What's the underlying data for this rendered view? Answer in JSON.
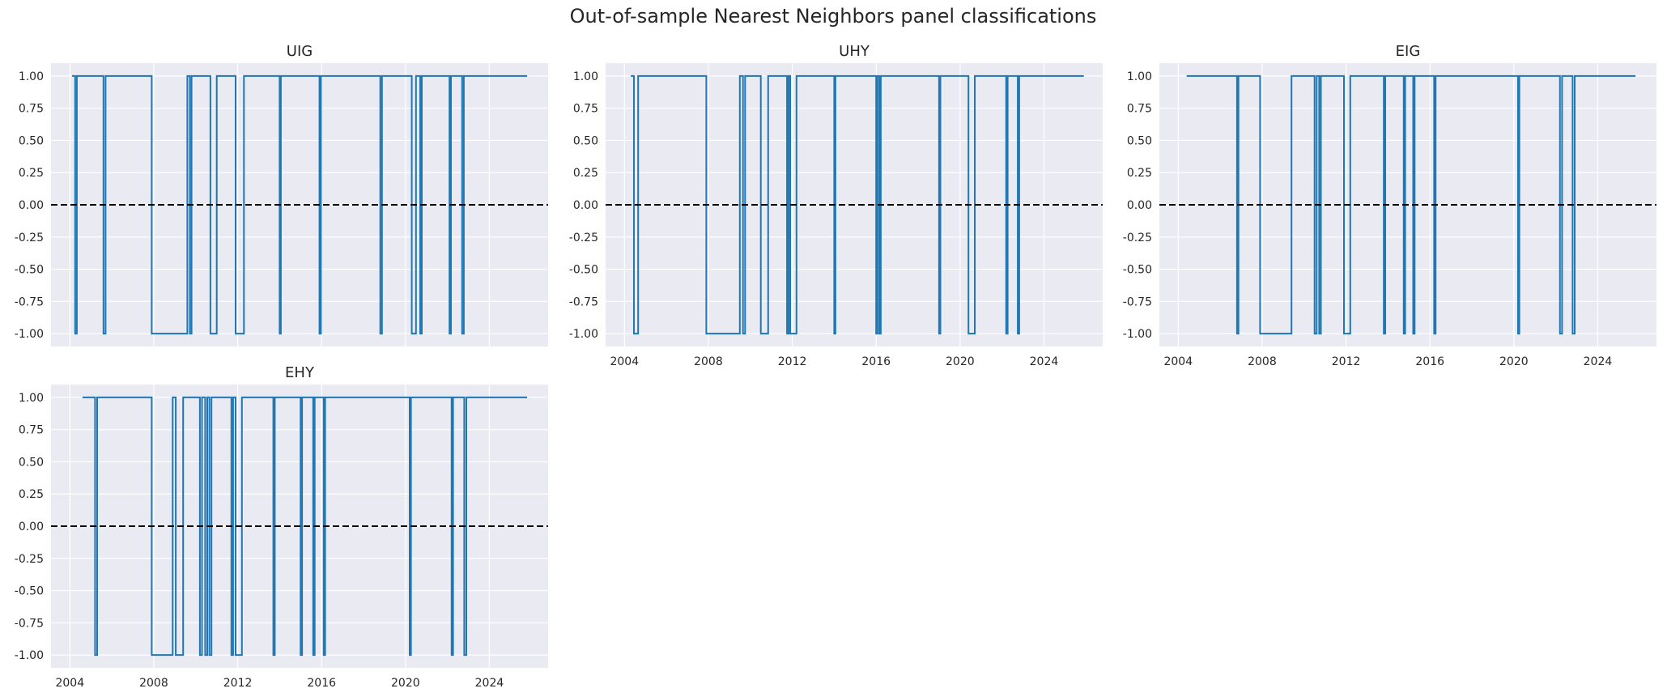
{
  "figure_title": "Out-of-sample Nearest Neighbors panel classifications",
  "colors": {
    "background": "#eaeaf2",
    "grid": "#ffffff",
    "series": "#1f77b4",
    "zero_line": "#000000"
  },
  "chart_data": [
    {
      "type": "line",
      "title": "UIG",
      "xlabel": "",
      "ylabel": "",
      "x_ticks": [
        "2004",
        "2008",
        "2012",
        "2016",
        "2020",
        "2024"
      ],
      "y_ticks": [
        "1.00",
        "0.75",
        "0.50",
        "0.25",
        "0.00",
        "-0.25",
        "-0.50",
        "-0.75",
        "-1.00"
      ],
      "ylim": [
        -1.1,
        1.1
      ],
      "xlim": [
        2003.1,
        2026.8
      ],
      "grid": true,
      "reference_line": {
        "y": 0,
        "style": "dashed"
      },
      "series": [
        {
          "step": true,
          "points": [
            [
              2004.1,
              1
            ],
            [
              2004.25,
              -1
            ],
            [
              2004.33,
              1
            ],
            [
              2005.6,
              -1
            ],
            [
              2005.7,
              1
            ],
            [
              2007.9,
              -1
            ],
            [
              2009.6,
              1
            ],
            [
              2009.72,
              -1
            ],
            [
              2009.8,
              1
            ],
            [
              2010.7,
              -1
            ],
            [
              2011.0,
              1
            ],
            [
              2011.9,
              -1
            ],
            [
              2012.3,
              1
            ],
            [
              2014.0,
              -1
            ],
            [
              2014.06,
              1
            ],
            [
              2015.9,
              -1
            ],
            [
              2015.97,
              1
            ],
            [
              2018.8,
              -1
            ],
            [
              2018.88,
              1
            ],
            [
              2020.3,
              -1
            ],
            [
              2020.5,
              1
            ],
            [
              2020.7,
              -1
            ],
            [
              2020.78,
              1
            ],
            [
              2022.1,
              -1
            ],
            [
              2022.17,
              1
            ],
            [
              2022.7,
              -1
            ],
            [
              2022.78,
              1
            ],
            [
              2025.8,
              1
            ]
          ]
        }
      ]
    },
    {
      "type": "line",
      "title": "UHY",
      "xlabel": "",
      "ylabel": "",
      "x_ticks": [
        "2004",
        "2008",
        "2012",
        "2016",
        "2020",
        "2024"
      ],
      "y_ticks": [
        "1.00",
        "0.75",
        "0.50",
        "0.25",
        "0.00",
        "-0.25",
        "-0.50",
        "-0.75",
        "-1.00"
      ],
      "ylim": [
        -1.1,
        1.1
      ],
      "xlim": [
        2003.1,
        2026.8
      ],
      "grid": true,
      "reference_line": {
        "y": 0,
        "style": "dashed"
      },
      "series": [
        {
          "step": true,
          "points": [
            [
              2004.3,
              1
            ],
            [
              2004.45,
              -1
            ],
            [
              2004.65,
              1
            ],
            [
              2007.9,
              -1
            ],
            [
              2009.5,
              1
            ],
            [
              2009.65,
              -1
            ],
            [
              2009.75,
              1
            ],
            [
              2010.5,
              -1
            ],
            [
              2010.85,
              1
            ],
            [
              2011.75,
              -1
            ],
            [
              2011.82,
              1
            ],
            [
              2011.9,
              -1
            ],
            [
              2012.2,
              1
            ],
            [
              2014.0,
              -1
            ],
            [
              2014.06,
              1
            ],
            [
              2016.0,
              -1
            ],
            [
              2016.06,
              1
            ],
            [
              2016.15,
              -1
            ],
            [
              2016.22,
              1
            ],
            [
              2019.0,
              -1
            ],
            [
              2019.06,
              1
            ],
            [
              2020.4,
              -1
            ],
            [
              2020.7,
              1
            ],
            [
              2022.2,
              -1
            ],
            [
              2022.27,
              1
            ],
            [
              2022.75,
              -1
            ],
            [
              2022.82,
              1
            ],
            [
              2025.9,
              1
            ]
          ]
        }
      ]
    },
    {
      "type": "line",
      "title": "EIG",
      "xlabel": "",
      "ylabel": "",
      "x_ticks": [
        "2004",
        "2008",
        "2012",
        "2016",
        "2020",
        "2024"
      ],
      "y_ticks": [
        "1.00",
        "0.75",
        "0.50",
        "0.25",
        "0.00",
        "-0.25",
        "-0.50",
        "-0.75",
        "-1.00"
      ],
      "ylim": [
        -1.1,
        1.1
      ],
      "xlim": [
        2003.1,
        2026.8
      ],
      "grid": true,
      "reference_line": {
        "y": 0,
        "style": "dashed"
      },
      "series": [
        {
          "step": true,
          "points": [
            [
              2004.4,
              1
            ],
            [
              2006.8,
              -1
            ],
            [
              2006.87,
              1
            ],
            [
              2007.9,
              -1
            ],
            [
              2009.4,
              1
            ],
            [
              2010.5,
              -1
            ],
            [
              2010.6,
              1
            ],
            [
              2010.72,
              -1
            ],
            [
              2010.8,
              1
            ],
            [
              2011.9,
              -1
            ],
            [
              2012.2,
              1
            ],
            [
              2013.8,
              -1
            ],
            [
              2013.87,
              1
            ],
            [
              2014.75,
              -1
            ],
            [
              2014.82,
              1
            ],
            [
              2015.2,
              -1
            ],
            [
              2015.27,
              1
            ],
            [
              2016.2,
              -1
            ],
            [
              2016.27,
              1
            ],
            [
              2020.2,
              -1
            ],
            [
              2020.26,
              1
            ],
            [
              2022.2,
              -1
            ],
            [
              2022.3,
              1
            ],
            [
              2022.8,
              -1
            ],
            [
              2022.9,
              1
            ],
            [
              2025.8,
              1
            ]
          ]
        }
      ]
    },
    {
      "type": "line",
      "title": "EHY",
      "xlabel": "",
      "ylabel": "",
      "x_ticks": [
        "2004",
        "2008",
        "2012",
        "2016",
        "2020",
        "2024"
      ],
      "y_ticks": [
        "1.00",
        "0.75",
        "0.50",
        "0.25",
        "0.00",
        "-0.25",
        "-0.50",
        "-0.75",
        "-1.00"
      ],
      "ylim": [
        -1.1,
        1.1
      ],
      "xlim": [
        2003.1,
        2026.8
      ],
      "grid": true,
      "reference_line": {
        "y": 0,
        "style": "dashed"
      },
      "series": [
        {
          "step": true,
          "points": [
            [
              2004.6,
              1
            ],
            [
              2005.2,
              -1
            ],
            [
              2005.3,
              1
            ],
            [
              2007.9,
              -1
            ],
            [
              2008.9,
              1
            ],
            [
              2009.05,
              -1
            ],
            [
              2009.4,
              1
            ],
            [
              2010.2,
              -1
            ],
            [
              2010.3,
              1
            ],
            [
              2010.45,
              -1
            ],
            [
              2010.55,
              1
            ],
            [
              2010.65,
              -1
            ],
            [
              2010.75,
              1
            ],
            [
              2011.7,
              -1
            ],
            [
              2011.78,
              1
            ],
            [
              2011.9,
              -1
            ],
            [
              2012.2,
              1
            ],
            [
              2013.7,
              -1
            ],
            [
              2013.77,
              1
            ],
            [
              2015.0,
              -1
            ],
            [
              2015.07,
              1
            ],
            [
              2015.6,
              -1
            ],
            [
              2015.67,
              1
            ],
            [
              2016.1,
              -1
            ],
            [
              2016.17,
              1
            ],
            [
              2020.2,
              -1
            ],
            [
              2020.26,
              1
            ],
            [
              2022.2,
              -1
            ],
            [
              2022.27,
              1
            ],
            [
              2022.8,
              -1
            ],
            [
              2022.9,
              1
            ],
            [
              2025.8,
              1
            ]
          ]
        }
      ]
    }
  ]
}
